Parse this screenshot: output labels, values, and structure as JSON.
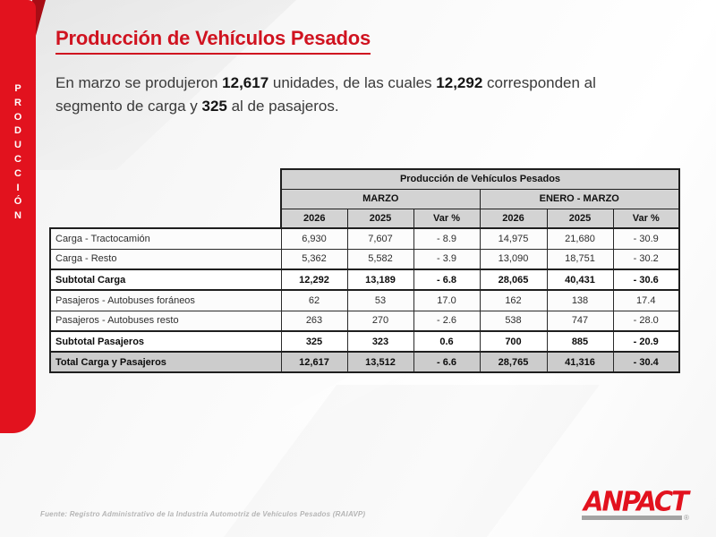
{
  "sidebar": {
    "vertical_text": "PRODUCCIÓN",
    "letters": [
      "P",
      "R",
      "O",
      "D",
      "U",
      "C",
      "C",
      "I",
      "Ó",
      "N"
    ]
  },
  "header": {
    "title": "Producción de Vehículos Pesados"
  },
  "intro": {
    "segments": [
      {
        "text": "En marzo se produjeron ",
        "bold": false
      },
      {
        "text": "12,617",
        "bold": true
      },
      {
        "text": " unidades, de las cuales ",
        "bold": false
      },
      {
        "text": "12,292",
        "bold": true
      },
      {
        "text": " corresponden al segmento de carga y ",
        "bold": false
      },
      {
        "text": "325",
        "bold": true
      },
      {
        "text": " al de pasajeros.",
        "bold": false
      }
    ]
  },
  "table": {
    "title": "Producción de Vehículos Pesados",
    "period_headers": [
      "MARZO",
      "ENERO - MARZO"
    ],
    "column_headers": [
      "2026",
      "2025",
      "Var %",
      "2026",
      "2025",
      "Var %"
    ],
    "rows": [
      {
        "label": "Carga - Tractocamión",
        "values": [
          "6,930",
          "7,607",
          "- 8.9",
          "14,975",
          "21,680",
          "- 30.9"
        ],
        "style": "normal"
      },
      {
        "label": "Carga - Resto",
        "values": [
          "5,362",
          "5,582",
          "- 3.9",
          "13,090",
          "18,751",
          "- 30.2"
        ],
        "style": "normal"
      },
      {
        "label": "Subtotal Carga",
        "values": [
          "12,292",
          "13,189",
          "- 6.8",
          "28,065",
          "40,431",
          "- 30.6"
        ],
        "style": "bold"
      },
      {
        "label": "Pasajeros - Autobuses foráneos",
        "values": [
          "62",
          "53",
          "17.0",
          "162",
          "138",
          "17.4"
        ],
        "style": "normal"
      },
      {
        "label": "Pasajeros - Autobuses resto",
        "values": [
          "263",
          "270",
          "- 2.6",
          "538",
          "747",
          "- 28.0"
        ],
        "style": "normal"
      },
      {
        "label": "Subtotal Pasajeros",
        "values": [
          "325",
          "323",
          "0.6",
          "700",
          "885",
          "- 20.9"
        ],
        "style": "bold"
      },
      {
        "label": "Total Carga y Pasajeros",
        "values": [
          "12,617",
          "13,512",
          "- 6.6",
          "28,765",
          "41,316",
          "- 30.4"
        ],
        "style": "total"
      }
    ]
  },
  "footer": {
    "source": "Fuente: Registro Administrativo de la Industria Automotriz de Vehículos Pesados (RAIAVP)"
  },
  "logo": {
    "text": "ANPACT",
    "registered": "®"
  },
  "colors": {
    "accent_red": "#e2121e",
    "accent_red_dark": "#a80d15",
    "title_red": "#d01320",
    "table_header_bg": "#d3d3d3",
    "total_row_bg": "#cccccc",
    "footer_gray": "#b5b5b5"
  }
}
